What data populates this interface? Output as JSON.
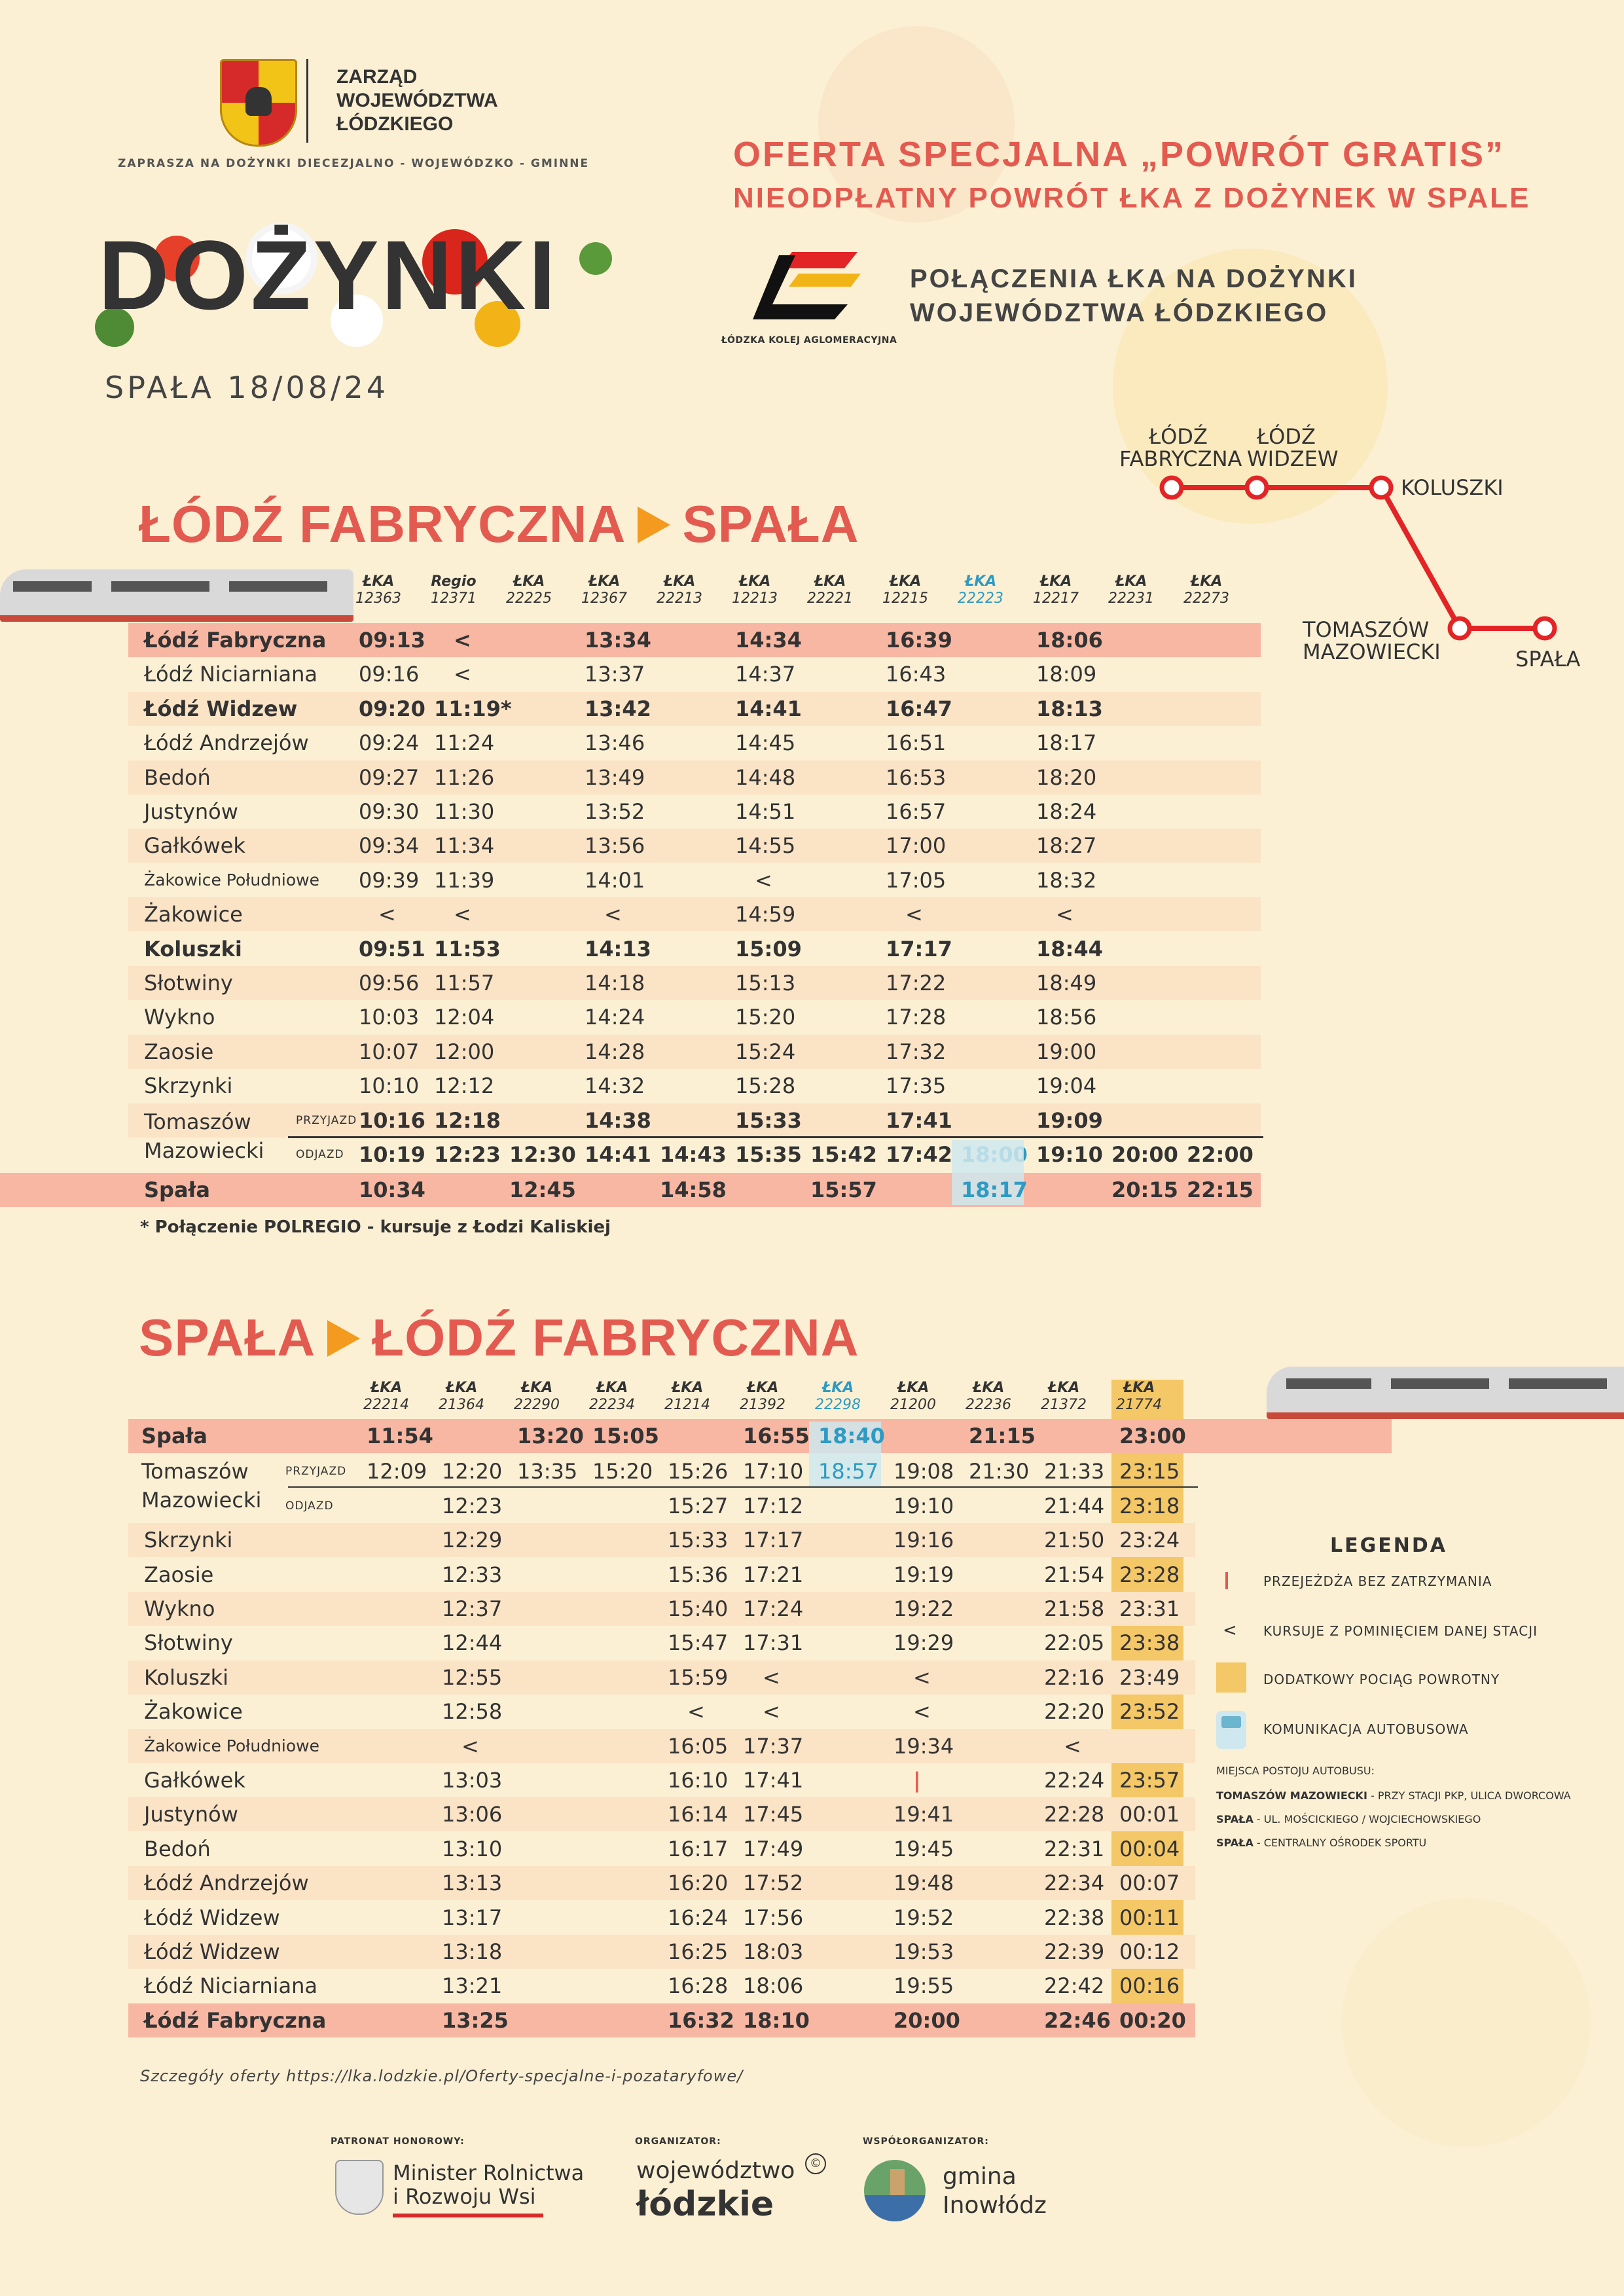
{
  "header": {
    "org_name_1": "ZARZĄD",
    "org_name_2": "WOJEWÓDZTWA",
    "org_name_3": "ŁÓDZKIEGO",
    "invite": "ZAPRASZA NA DOŻYNKI DIECEZJALNO - WOJEWÓDZKO - GMINNE",
    "event": "DOŻYNKI",
    "date": "SPAŁA 18/08/24",
    "offer_line1": "OFERTA SPECJALNA „POWRÓT GRATIS”",
    "offer_line2": "NIEODPŁATNY POWRÓT ŁKA Z DOŻYNEK W SPALE",
    "lka_name": "ŁÓDZKA KOLEJ AGLOMERACYJNA",
    "connections_1": "POŁĄCZENIA ŁKA NA DOŻYNKI",
    "connections_2": "WOJEWÓDZTWA ŁÓDZKIEGO"
  },
  "map": {
    "stations": [
      "ŁÓDŹ FABRYCZNA",
      "ŁÓDŹ WIDZEW",
      "KOLUSZKI",
      "TOMASZÓW MAZOWIECKI",
      "SPAŁA"
    ],
    "line_color": "#e32426"
  },
  "outbound": {
    "title_from": "ŁÓDŹ FABRYCZNA",
    "title_to": "SPAŁA",
    "trains": [
      {
        "op": "ŁKA",
        "no": "12363"
      },
      {
        "op": "Regio",
        "no": "12371"
      },
      {
        "op": "ŁKA",
        "no": "22225"
      },
      {
        "op": "ŁKA",
        "no": "12367"
      },
      {
        "op": "ŁKA",
        "no": "22213"
      },
      {
        "op": "ŁKA",
        "no": "12213"
      },
      {
        "op": "ŁKA",
        "no": "22221"
      },
      {
        "op": "ŁKA",
        "no": "12215"
      },
      {
        "op": "ŁKA",
        "no": "22223",
        "bus": true
      },
      {
        "op": "ŁKA",
        "no": "12217"
      },
      {
        "op": "ŁKA",
        "no": "22231"
      },
      {
        "op": "ŁKA",
        "no": "22273"
      }
    ],
    "rows": [
      {
        "station": "Łódź Fabryczna",
        "bold": true,
        "style": "bold",
        "times": [
          "09:13",
          "<",
          "",
          "13:34",
          "",
          "14:34",
          "",
          "16:39",
          "",
          "18:06",
          "",
          ""
        ]
      },
      {
        "station": "Łódź Niciarniana",
        "times": [
          "09:16",
          "<",
          "",
          "13:37",
          "",
          "14:37",
          "",
          "16:43",
          "",
          "18:09",
          "",
          ""
        ]
      },
      {
        "station": "Łódź Widzew",
        "bold": true,
        "style": "shade",
        "times": [
          "09:20",
          "11:19*",
          "",
          "13:42",
          "",
          "14:41",
          "",
          "16:47",
          "",
          "18:13",
          "",
          ""
        ]
      },
      {
        "station": "Łódź Andrzejów",
        "times": [
          "09:24",
          "11:24",
          "",
          "13:46",
          "",
          "14:45",
          "",
          "16:51",
          "",
          "18:17",
          "",
          ""
        ]
      },
      {
        "station": "Bedoń",
        "style": "shade",
        "times": [
          "09:27",
          "11:26",
          "",
          "13:49",
          "",
          "14:48",
          "",
          "16:53",
          "",
          "18:20",
          "",
          ""
        ]
      },
      {
        "station": "Justynów",
        "times": [
          "09:30",
          "11:30",
          "",
          "13:52",
          "",
          "14:51",
          "",
          "16:57",
          "",
          "18:24",
          "",
          ""
        ]
      },
      {
        "station": "Gałkówek",
        "style": "shade",
        "times": [
          "09:34",
          "11:34",
          "",
          "13:56",
          "",
          "14:55",
          "",
          "17:00",
          "",
          "18:27",
          "",
          ""
        ]
      },
      {
        "station": "Żakowice Południowe",
        "small": true,
        "times": [
          "09:39",
          "11:39",
          "",
          "14:01",
          "",
          "<",
          "",
          "17:05",
          "",
          "18:32",
          "",
          ""
        ]
      },
      {
        "station": "Żakowice",
        "style": "shade",
        "times": [
          "<",
          "<",
          "",
          "<",
          "",
          "14:59",
          "",
          "<",
          "",
          "<",
          "",
          ""
        ]
      },
      {
        "station": "Koluszki",
        "bold": true,
        "times": [
          "09:51",
          "11:53",
          "",
          "14:13",
          "",
          "15:09",
          "",
          "17:17",
          "",
          "18:44",
          "",
          ""
        ]
      },
      {
        "station": "Słotwiny",
        "style": "shade",
        "times": [
          "09:56",
          "11:57",
          "",
          "14:18",
          "",
          "15:13",
          "",
          "17:22",
          "",
          "18:49",
          "",
          ""
        ]
      },
      {
        "station": "Wykno",
        "times": [
          "10:03",
          "12:04",
          "",
          "14:24",
          "",
          "15:20",
          "",
          "17:28",
          "",
          "18:56",
          "",
          ""
        ]
      },
      {
        "station": "Zaosie",
        "style": "shade",
        "times": [
          "10:07",
          "12:00",
          "",
          "14:28",
          "",
          "15:24",
          "",
          "17:32",
          "",
          "19:00",
          "",
          ""
        ]
      },
      {
        "station": "Skrzynki",
        "times": [
          "10:10",
          "12:12",
          "",
          "14:32",
          "",
          "15:28",
          "",
          "17:35",
          "",
          "19:04",
          "",
          ""
        ]
      }
    ],
    "tomaszow_label": "Tomaszów Mazowiecki",
    "arr_label": "PRZYJAZD",
    "dep_label": "ODJAZD",
    "tomaszow_arr": [
      "10:16",
      "12:18",
      "",
      "14:38",
      "",
      "15:33",
      "",
      "17:41",
      "",
      "19:09",
      "",
      ""
    ],
    "tomaszow_dep": [
      "10:19",
      "12:23",
      "12:30",
      "14:41",
      "14:43",
      "15:35",
      "15:42",
      "17:42",
      "18:00",
      "19:10",
      "20:00",
      "22:00"
    ],
    "spala": {
      "station": "Spała",
      "times": [
        "10:34",
        "",
        "12:45",
        "",
        "14:58",
        "",
        "15:57",
        "",
        "18:17",
        "",
        "20:15",
        "22:15"
      ]
    },
    "footnote": "* Połączenie POLREGIO - kursuje z Łodzi Kaliskiej"
  },
  "inbound": {
    "title_from": "SPAŁA",
    "title_to": "ŁÓDŹ FABRYCZNA",
    "trains": [
      {
        "op": "ŁKA",
        "no": "22214"
      },
      {
        "op": "ŁKA",
        "no": "21364"
      },
      {
        "op": "ŁKA",
        "no": "22290"
      },
      {
        "op": "ŁKA",
        "no": "22234"
      },
      {
        "op": "ŁKA",
        "no": "21214"
      },
      {
        "op": "ŁKA",
        "no": "21392"
      },
      {
        "op": "ŁKA",
        "no": "22298",
        "bus": true
      },
      {
        "op": "ŁKA",
        "no": "21200"
      },
      {
        "op": "ŁKA",
        "no": "22236"
      },
      {
        "op": "ŁKA",
        "no": "21372"
      },
      {
        "op": "ŁKA",
        "no": "21774"
      }
    ],
    "spala": {
      "station": "Spała",
      "times": [
        "11:54",
        "",
        "13:20",
        "15:05",
        "",
        "16:55",
        "18:40",
        "",
        "21:15",
        "",
        "23:00"
      ]
    },
    "tomaszow_label": "Tomaszów Mazowiecki",
    "arr_label": "PRZYJAZD",
    "dep_label": "ODJAZD",
    "tomaszow_arr": [
      "12:09",
      "12:20",
      "13:35",
      "15:20",
      "15:26",
      "17:10",
      "18:57",
      "19:08",
      "21:30",
      "21:33",
      "23:15"
    ],
    "tomaszow_dep": [
      "",
      "12:23",
      "",
      "",
      "15:27",
      "17:12",
      "",
      "19:10",
      "",
      "21:44",
      "23:18"
    ],
    "rows": [
      {
        "station": "Skrzynki",
        "style": "shade",
        "times": [
          "",
          "12:29",
          "",
          "",
          "15:33",
          "17:17",
          "",
          "19:16",
          "",
          "21:50",
          "23:24"
        ]
      },
      {
        "station": "Zaosie",
        "times": [
          "",
          "12:33",
          "",
          "",
          "15:36",
          "17:21",
          "",
          "19:19",
          "",
          "21:54",
          "23:28"
        ]
      },
      {
        "station": "Wykno",
        "style": "shade",
        "times": [
          "",
          "12:37",
          "",
          "",
          "15:40",
          "17:24",
          "",
          "19:22",
          "",
          "21:58",
          "23:31"
        ]
      },
      {
        "station": "Słotwiny",
        "times": [
          "",
          "12:44",
          "",
          "",
          "15:47",
          "17:31",
          "",
          "19:29",
          "",
          "22:05",
          "23:38"
        ]
      },
      {
        "station": "Koluszki",
        "style": "shade",
        "times": [
          "",
          "12:55",
          "",
          "",
          "15:59",
          "<",
          "",
          "<",
          "",
          "22:16",
          "23:49"
        ]
      },
      {
        "station": "Żakowice",
        "times": [
          "",
          "12:58",
          "",
          "",
          "<",
          "<",
          "",
          "<",
          "",
          "22:20",
          "23:52"
        ]
      },
      {
        "station": "Żakowice Południowe",
        "small": true,
        "style": "shade",
        "times": [
          "",
          "<",
          "",
          "",
          "16:05",
          "17:37",
          "",
          "19:34",
          "",
          "<",
          ""
        ]
      },
      {
        "station": "Gałkówek",
        "times": [
          "",
          "13:03",
          "",
          "",
          "16:10",
          "17:41",
          "",
          "|",
          "",
          "22:24",
          "23:57"
        ]
      },
      {
        "station": "Justynów",
        "style": "shade",
        "times": [
          "",
          "13:06",
          "",
          "",
          "16:14",
          "17:45",
          "",
          "19:41",
          "",
          "22:28",
          "00:01"
        ]
      },
      {
        "station": "Bedoń",
        "times": [
          "",
          "13:10",
          "",
          "",
          "16:17",
          "17:49",
          "",
          "19:45",
          "",
          "22:31",
          "00:04"
        ]
      },
      {
        "station": "Łódź Andrzejów",
        "style": "shade",
        "times": [
          "",
          "13:13",
          "",
          "",
          "16:20",
          "17:52",
          "",
          "19:48",
          "",
          "22:34",
          "00:07"
        ]
      },
      {
        "station": "Łódź Widzew",
        "times": [
          "",
          "13:17",
          "",
          "",
          "16:24",
          "17:56",
          "",
          "19:52",
          "",
          "22:38",
          "00:11"
        ]
      },
      {
        "station": "Łódź Widzew",
        "style": "shade",
        "times": [
          "",
          "13:18",
          "",
          "",
          "16:25",
          "18:03",
          "",
          "19:53",
          "",
          "22:39",
          "00:12"
        ]
      },
      {
        "station": "Łódź Niciarniana",
        "times": [
          "",
          "13:21",
          "",
          "",
          "16:28",
          "18:06",
          "",
          "19:55",
          "",
          "22:42",
          "00:16"
        ]
      },
      {
        "station": "Łódź Fabryczna",
        "bold": true,
        "style": "bold",
        "times": [
          "",
          "13:25",
          "",
          "",
          "16:32",
          "18:10",
          "",
          "20:00",
          "",
          "22:46",
          "00:20"
        ]
      }
    ]
  },
  "legend": {
    "title": "LEGENDA",
    "items": [
      {
        "symbol": "|",
        "text": "PRZEJEŻDŻA BEZ ZATRZYMANIA"
      },
      {
        "symbol": "<",
        "text": "KURSUJE Z POMINIĘCIEM DANEJ STACJI"
      },
      {
        "symbol": "box",
        "text": "DODATKOWY POCIĄG POWROTNY"
      },
      {
        "symbol": "bus",
        "text": "KOMUNIKACJA AUTOBUSOWA"
      }
    ],
    "bus_stops_title": "MIEJSCA POSTOJU AUTOBUSU:",
    "bus_stops": [
      {
        "place": "TOMASZÓW MAZOWIECKI",
        "desc": " - PRZY STACJI PKP, ULICA DWORCOWA"
      },
      {
        "place": "SPAŁA",
        "desc": " -  UL. MOŚCICKIEGO / WOJCIECHOWSKIEGO"
      },
      {
        "place": "SPAŁA",
        "desc": " -  CENTRALNY OŚRODEK SPORTU"
      }
    ]
  },
  "source_text": "Szczegóły oferty https://lka.lodzkie.pl/Oferty-specjalne-i-pozataryfowe/",
  "footer": {
    "patron_label": "PATRONAT HONOROWY:",
    "patron_name_1": "Minister Rolnictwa",
    "patron_name_2": "i Rozwoju Wsi",
    "organizer_label": "ORGANIZATOR:",
    "organizer_1": "województwo",
    "organizer_2": "łódzkie",
    "coorganizer_label": "WSPÓŁORGANIZATOR:",
    "coorganizer_1": "gmina",
    "coorganizer_2": "Inowłódz"
  },
  "colors": {
    "accent": "#e35b50",
    "arrow": "#f39a1f",
    "bus": "#2e9bc4",
    "extra_train": "#f4c767",
    "row_shade": "#fbe3c6",
    "row_bold": "#f8b7a2"
  }
}
